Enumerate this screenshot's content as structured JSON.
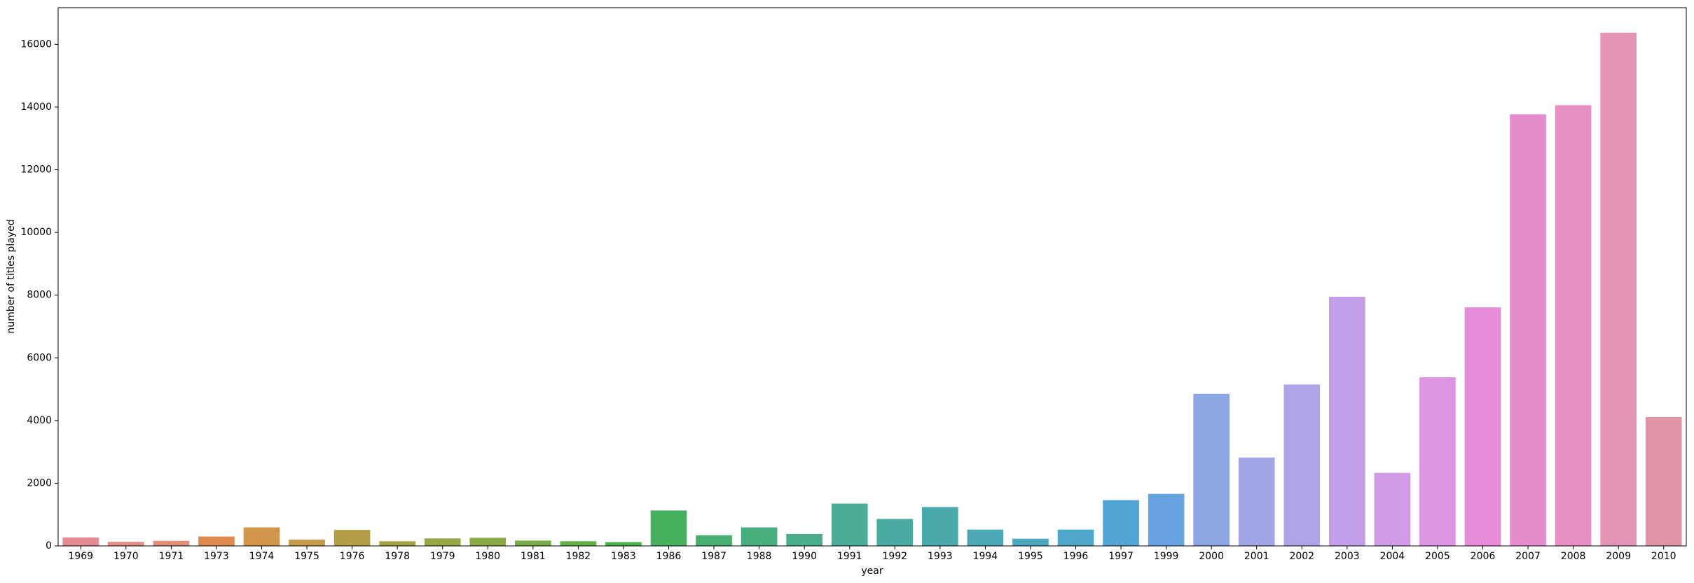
{
  "chart_data": {
    "type": "bar",
    "xlabel": "year",
    "ylabel": "number of titles played",
    "categories": [
      "1969",
      "1970",
      "1971",
      "1973",
      "1974",
      "1975",
      "1976",
      "1978",
      "1979",
      "1980",
      "1981",
      "1982",
      "1983",
      "1986",
      "1987",
      "1988",
      "1990",
      "1991",
      "1992",
      "1993",
      "1994",
      "1995",
      "1996",
      "1997",
      "1999",
      "2000",
      "2001",
      "2002",
      "2003",
      "2004",
      "2005",
      "2006",
      "2007",
      "2008",
      "2009",
      "2010"
    ],
    "values": [
      270,
      130,
      160,
      300,
      590,
      200,
      510,
      150,
      240,
      260,
      170,
      150,
      120,
      1130,
      340,
      590,
      380,
      1350,
      860,
      1240,
      520,
      230,
      520,
      1460,
      1660,
      4850,
      2820,
      5150,
      7950,
      2330,
      5380,
      7610,
      13770,
      14060,
      16370,
      4110
    ],
    "colors": [
      "#e48a95",
      "#e48c86",
      "#e28e78",
      "#dd8a4c",
      "#d2964a",
      "#c49a48",
      "#b49f47",
      "#a6a346",
      "#98a646",
      "#8aa946",
      "#78ac46",
      "#62af47",
      "#47b14b",
      "#47b05f",
      "#47af70",
      "#48ae7e",
      "#48ad8a",
      "#49ac96",
      "#49aba1",
      "#4aaaab",
      "#4ba9b5",
      "#4ca8bf",
      "#4ea6c9",
      "#52a4d5",
      "#67a2e0",
      "#8ca5e3",
      "#a0a5e6",
      "#b1a3e8",
      "#c19fe8",
      "#d09ce6",
      "#dd95e3",
      "#e68ad9",
      "#e68ccc",
      "#e590c1",
      "#e493b5",
      "#e494a8"
    ],
    "ylim": [
      0,
      17170
    ],
    "yticks": [
      0,
      2000,
      4000,
      6000,
      8000,
      10000,
      12000,
      14000,
      16000
    ],
    "grid": false
  }
}
